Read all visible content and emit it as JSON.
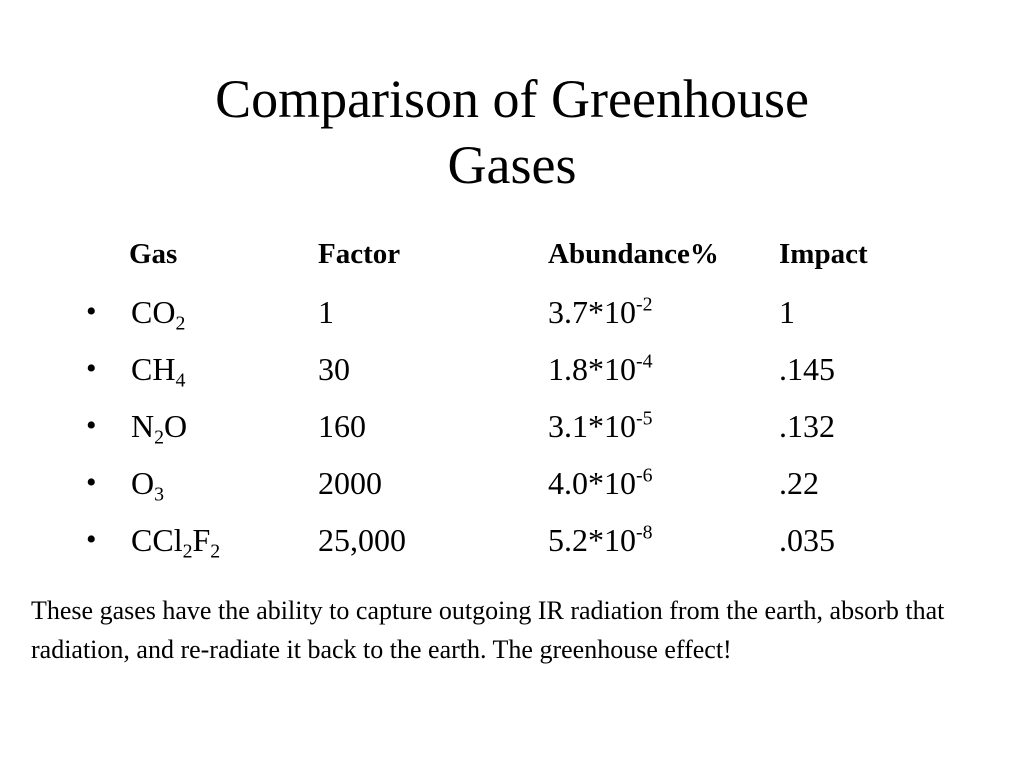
{
  "slide": {
    "title_lines": [
      "Comparison of Greenhouse",
      "Gases"
    ],
    "table": {
      "headers": {
        "gas": "Gas",
        "factor": "Factor",
        "abundance": "Abundance%",
        "impact": "Impact"
      },
      "bullet": "•",
      "rows": [
        {
          "gas_parts": [
            {
              "t": "CO"
            },
            {
              "t": "2",
              "sub": true
            }
          ],
          "factor": "1",
          "abundance_base": "3.7*10",
          "abundance_exp": "-2",
          "impact": "1"
        },
        {
          "gas_parts": [
            {
              "t": "CH"
            },
            {
              "t": "4",
              "sub": true
            }
          ],
          "factor": "30",
          "abundance_base": "1.8*10",
          "abundance_exp": "-4",
          "impact": ".145"
        },
        {
          "gas_parts": [
            {
              "t": "N"
            },
            {
              "t": "2",
              "sub": true
            },
            {
              "t": "O"
            }
          ],
          "factor": "160",
          "abundance_base": "3.1*10",
          "abundance_exp": "-5",
          "impact": ".132"
        },
        {
          "gas_parts": [
            {
              "t": "O"
            },
            {
              "t": "3",
              "sub": true
            }
          ],
          "factor": "2000",
          "abundance_base": "4.0*10",
          "abundance_exp": "-6",
          "impact": ".22"
        },
        {
          "gas_parts": [
            {
              "t": "CCl"
            },
            {
              "t": "2",
              "sub": true
            },
            {
              "t": "F"
            },
            {
              "t": "2",
              "sub": true
            }
          ],
          "factor": "25,000",
          "abundance_base": "5.2*10",
          "abundance_exp": "-8",
          "impact": ".035"
        }
      ]
    },
    "footnote": "These gases have the ability to capture outgoing IR radiation from the earth, absorb that radiation, and re-radiate it back to the earth. The greenhouse effect!"
  }
}
